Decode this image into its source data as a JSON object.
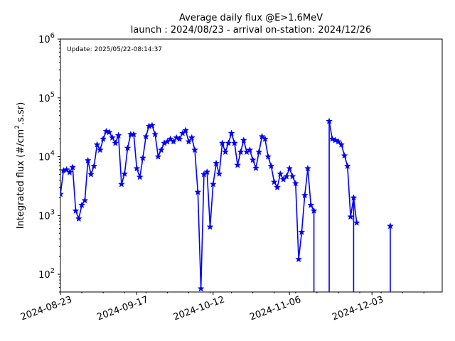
{
  "chart_data": {
    "type": "line",
    "title": "Average daily flux @E>1.6MeV",
    "subtitle": "launch : 2024/08/23 - arrival on-station: 2024/12/26",
    "annotation": "Update: 2025/05/22-08:14:37",
    "xlabel": "",
    "ylabel": "Integrated flux (#/cm",
    "ylabel_sup": "2",
    "ylabel_rest": ".s.sr)",
    "y_scale": "log",
    "ylim": [
      50,
      1000000
    ],
    "xlim": [
      "2024-08-23",
      "2024-12-26"
    ],
    "x_ticks": [
      "2024-08-23",
      "2024-09-17",
      "2024-10-12",
      "2024-11-06",
      "2024-12-03"
    ],
    "y_ticks": [
      {
        "value": 100,
        "base": "10",
        "exp": "2"
      },
      {
        "value": 1000,
        "base": "10",
        "exp": "3"
      },
      {
        "value": 10000,
        "base": "10",
        "exp": "4"
      },
      {
        "value": 100000,
        "base": "10",
        "exp": "5"
      },
      {
        "value": 1000000,
        "base": "10",
        "exp": "6"
      }
    ],
    "grid": false,
    "series": [
      {
        "color": "#0000ff",
        "marker": "star",
        "segments": [
          {
            "x": [
              "2024-08-23",
              "2024-08-24",
              "2024-08-25",
              "2024-08-26",
              "2024-08-27",
              "2024-08-28",
              "2024-08-29",
              "2024-08-30",
              "2024-08-31",
              "2024-09-01",
              "2024-09-02",
              "2024-09-03",
              "2024-09-04",
              "2024-09-05",
              "2024-09-06",
              "2024-09-07",
              "2024-09-08",
              "2024-09-09",
              "2024-09-10",
              "2024-09-11",
              "2024-09-12",
              "2024-09-13",
              "2024-09-14",
              "2024-09-15",
              "2024-09-16",
              "2024-09-17",
              "2024-09-18",
              "2024-09-19",
              "2024-09-20",
              "2024-09-21",
              "2024-09-22",
              "2024-09-23",
              "2024-09-24",
              "2024-09-25",
              "2024-09-26",
              "2024-09-27",
              "2024-09-28",
              "2024-09-29",
              "2024-09-30",
              "2024-10-01",
              "2024-10-02",
              "2024-10-03",
              "2024-10-04",
              "2024-10-05",
              "2024-10-06",
              "2024-10-07",
              "2024-10-08",
              "2024-10-09",
              "2024-10-10",
              "2024-10-11",
              "2024-10-12",
              "2024-10-13",
              "2024-10-14",
              "2024-10-15",
              "2024-10-16",
              "2024-10-17",
              "2024-10-18",
              "2024-10-19",
              "2024-10-20",
              "2024-10-21",
              "2024-10-22",
              "2024-10-23",
              "2024-10-24",
              "2024-10-25",
              "2024-10-26",
              "2024-10-27",
              "2024-10-28",
              "2024-10-29",
              "2024-10-30",
              "2024-10-31",
              "2024-11-01",
              "2024-11-02",
              "2024-11-03",
              "2024-11-04",
              "2024-11-05",
              "2024-11-06",
              "2024-11-07",
              "2024-11-08",
              "2024-11-09",
              "2024-11-10",
              "2024-11-11",
              "2024-11-12",
              "2024-11-13"
            ],
            "y": [
              2300,
              5800,
              6000,
              5400,
              6600,
              1200,
              880,
              1500,
              1800,
              8600,
              5000,
              6900,
              16000,
              13000,
              20000,
              27000,
              26000,
              21000,
              17000,
              23000,
              3400,
              5100,
              14000,
              24000,
              24000,
              6300,
              4500,
              9500,
              22000,
              33000,
              34000,
              24000,
              10000,
              13000,
              17000,
              18000,
              20000,
              18000,
              21000,
              20000,
              25000,
              28000,
              18000,
              21000,
              13000,
              2500,
              57,
              5000,
              5500,
              640,
              3400,
              7700,
              5100,
              17000,
              12000,
              17000,
              25000,
              17000,
              7200,
              12000,
              19000,
              12000,
              13000,
              8800,
              6400,
              12000,
              22000,
              20000,
              10000,
              6900,
              3700,
              3000,
              5100,
              4100,
              4600,
              6300,
              4600,
              3500,
              180,
              520,
              2200,
              6300,
              1500
            ],
            "drop_after": false
          },
          {
            "x": [
              "2024-11-13",
              "2024-11-14"
            ],
            "y": [
              1500,
              1200
            ],
            "drop_after": true
          },
          {
            "x": [
              "2024-11-19",
              "2024-11-20",
              "2024-11-21",
              "2024-11-22",
              "2024-11-23",
              "2024-11-24",
              "2024-11-25",
              "2024-11-26",
              "2024-11-27",
              "2024-11-28"
            ],
            "y": [
              40000,
              20000,
              19000,
              18000,
              16000,
              10400,
              6900,
              950,
              2000,
              750
            ],
            "drop_before": true,
            "drop_after_index": 8
          },
          {
            "x": [
              "2024-12-09"
            ],
            "y": [
              660
            ],
            "drop_before": true
          }
        ]
      }
    ]
  }
}
